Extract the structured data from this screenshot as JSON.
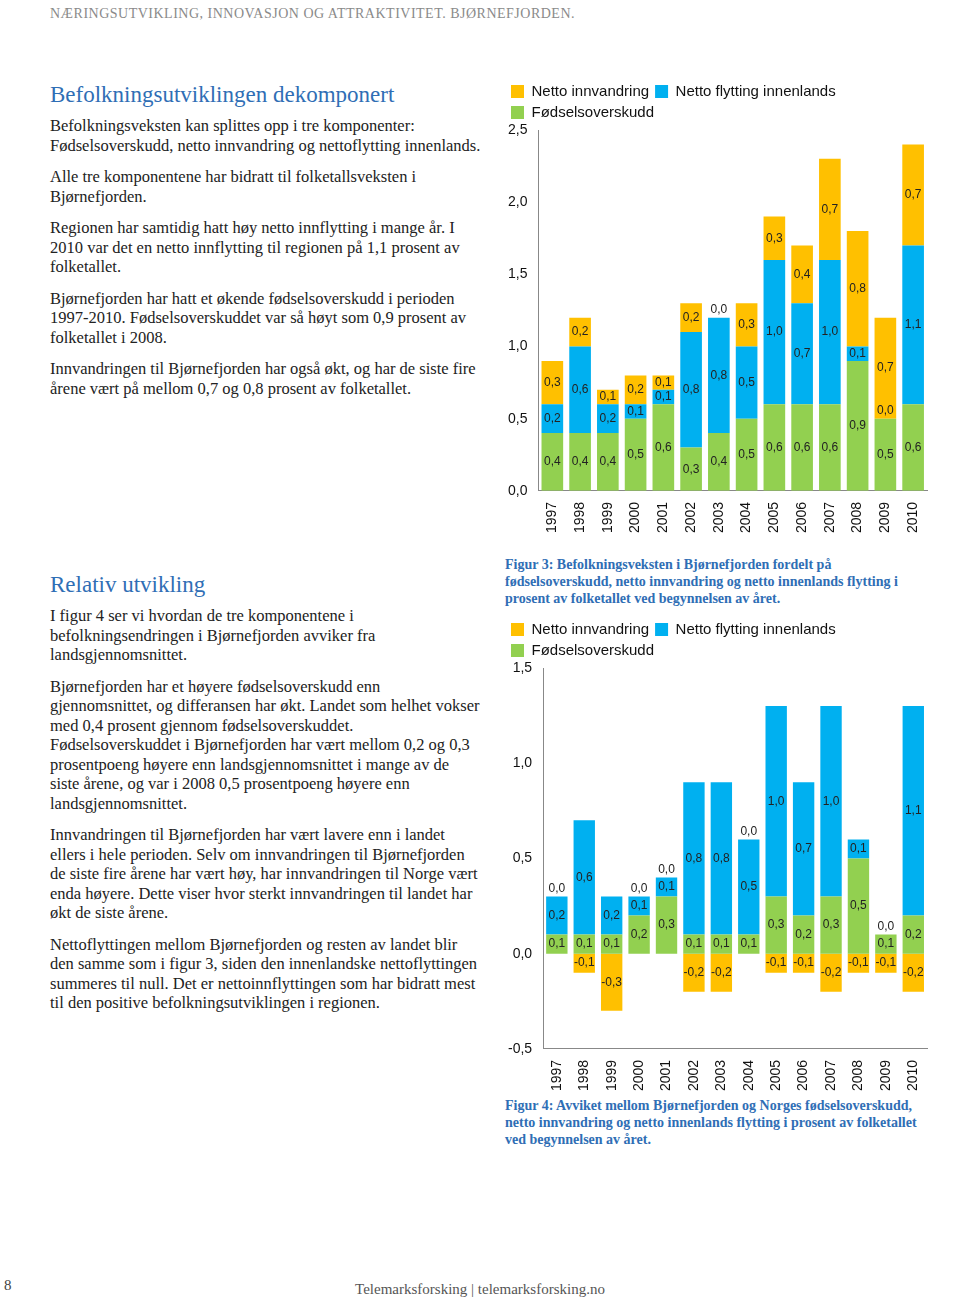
{
  "header": "NÆRINGSUTVIKLING, INNOVASJON OG ATTRAKTIVITET. BJØRNEFJORDEN.",
  "sections": [
    {
      "title": "Befolkningsutviklingen dekomponert",
      "paragraphs": [
        "Befolkningsveksten kan splittes opp i tre komponenter: Fødselsoverskudd, netto innvandring og nettoflytting innenlands.",
        "Alle tre komponentene har bidratt til folketallsveksten i Bjørnefjorden.",
        "Regionen har samtidig hatt høy netto innflytting i mange år. I 2010 var det en netto innflytting til regionen på 1,1 prosent av folketallet.",
        "Bjørnefjorden har hatt et økende fødselsoverskudd i perioden 1997-2010. Fødselsoverskuddet var så høyt som 0,9 prosent av folketallet i 2008.",
        "Innvandringen til Bjørnefjorden har også økt, og har de siste fire årene vært på mellom 0,7 og 0,8 prosent av folketallet."
      ]
    },
    {
      "title": "Relativ utvikling",
      "paragraphs": [
        "I figur 4 ser vi hvordan de tre komponentene i befolkningsendringen i Bjørnefjorden avviker fra landsgjennomsnittet.",
        "Bjørnefjorden har et høyere fødselsoverskudd enn gjennomsnittet, og differansen har økt. Landet som helhet vokser med 0,4 prosent gjennom fødselsoverskuddet. Fødselsoverskuddet i Bjørnefjorden har vært mellom 0,2 og 0,3 prosentpoeng høyere enn landsgjennomsnittet i mange av de siste årene, og var i 2008 0,5 prosentpoeng høyere enn landsgjennomsnittet.",
        "Innvandringen til Bjørnefjorden har vært lavere enn i landet ellers i hele perioden. Selv om innvandringen til Bjørnefjorden de siste fire årene har vært høy, har innvandringen til Norge vært enda høyere. Dette viser hvor sterkt innvandringen til landet har økt de siste årene.",
        "Nettoflyttingen mellom Bjørnefjorden og resten av landet blir den samme som i figur 3, siden den innenlandske nettoflyttingen summeres til null. Det er nettoinnflyttingen som har bidratt mest til den positive befolkningsutviklingen i regionen."
      ]
    }
  ],
  "footer": {
    "page": "8",
    "text": "Telemarksforsking | telemarksforsking.no"
  },
  "chart_data": [
    {
      "type": "bar",
      "stacked": true,
      "data_labels": true,
      "legend": "top-left",
      "grid": false,
      "caption": "Figur 3: Befolkningsveksten i Bjørnefjorden fordelt på fødselsoverskudd, netto innvandring og netto innenlands flytting i prosent av folketallet ved begynnelsen av året.",
      "categories": [
        "1997",
        "1998",
        "1999",
        "2000",
        "2001",
        "2002",
        "2003",
        "2004",
        "2005",
        "2006",
        "2007",
        "2008",
        "2009",
        "2010"
      ],
      "ylim": [
        0,
        2.5
      ],
      "yticks": [
        {
          "value": 0,
          "label": "0,0"
        },
        {
          "value": 0.5,
          "label": "0,5"
        },
        {
          "value": 1,
          "label": "1,0"
        },
        {
          "value": 1.5,
          "label": "1,5"
        },
        {
          "value": 2,
          "label": "2,0"
        },
        {
          "value": 2.5,
          "label": "2,5"
        }
      ],
      "series": [
        {
          "name": "Fødselsoverskudd",
          "color": "#92D050",
          "values": [
            0.4,
            0.4,
            0.4,
            0.5,
            0.6,
            0.3,
            0.4,
            0.5,
            0.6,
            0.6,
            0.6,
            0.9,
            0.5,
            0.6
          ],
          "value_labels": [
            "0,4",
            "0,4",
            "0,4",
            "0,5",
            "0,6",
            "0,3",
            "0,4",
            "0,5",
            "0,6",
            "0,6",
            "0,6",
            "0,9",
            "0,5",
            "0,6"
          ]
        },
        {
          "name": "Netto flytting innenlands",
          "color": "#00B0F0",
          "values": [
            0.2,
            0.6,
            0.2,
            0.1,
            0.1,
            0.8,
            0.8,
            0.5,
            1.0,
            0.7,
            1.0,
            0.1,
            0.0,
            1.1
          ],
          "value_labels": [
            "0,2",
            "0,6",
            "0,2",
            "0,1",
            "0,1",
            "0,8",
            "0,8",
            "0,5",
            "1,0",
            "0,7",
            "1,0",
            "0,1",
            "0,0",
            "1,1"
          ]
        },
        {
          "name": "Netto innvandring",
          "color": "#FFC000",
          "values": [
            0.3,
            0.2,
            0.1,
            0.2,
            0.1,
            0.2,
            0.0,
            0.3,
            0.3,
            0.4,
            0.7,
            0.8,
            0.7,
            0.7
          ],
          "value_labels": [
            "0,3",
            "0,2",
            "0,1",
            "0,2",
            "0,1",
            "0,2",
            "0,0",
            "0,3",
            "0,3",
            "0,4",
            "0,7",
            "0,8",
            "0,7",
            "0,7"
          ]
        }
      ]
    },
    {
      "type": "bar",
      "stacked": true,
      "data_labels": true,
      "legend": "top-left",
      "grid": false,
      "caption": "Figur 4: Avviket mellom Bjørnefjorden og Norges fødselsoverskudd, netto innvandring og netto innenlands flytting i prosent av folketallet ved begynnelsen av året.",
      "categories": [
        "1997",
        "1998",
        "1999",
        "2000",
        "2001",
        "2002",
        "2003",
        "2004",
        "2005",
        "2006",
        "2007",
        "2008",
        "2009",
        "2010"
      ],
      "ylim": [
        -0.5,
        1.5
      ],
      "yticks": [
        {
          "value": -0.5,
          "label": "-0,5"
        },
        {
          "value": 0,
          "label": "0,0"
        },
        {
          "value": 0.5,
          "label": "0,5"
        },
        {
          "value": 1,
          "label": "1,0"
        },
        {
          "value": 1.5,
          "label": "1,5"
        }
      ],
      "series": [
        {
          "name": "Fødselsoverskudd",
          "color": "#92D050",
          "values": [
            0.1,
            0.1,
            0.1,
            0.2,
            0.3,
            0.1,
            0.1,
            0.1,
            0.3,
            0.2,
            0.3,
            0.5,
            0.1,
            0.2
          ],
          "value_labels": [
            "0,1",
            "0,1",
            "0,1",
            "0,2",
            "0,3",
            "0,1",
            "0,1",
            "0,1",
            "0,3",
            "0,2",
            "0,3",
            "0,5",
            "0,1",
            "0,2"
          ]
        },
        {
          "name": "Netto flytting innenlands",
          "color": "#00B0F0",
          "values": [
            0.2,
            0.6,
            0.2,
            0.1,
            0.1,
            0.8,
            0.8,
            0.5,
            1.0,
            0.7,
            1.0,
            0.1,
            0.0,
            1.1
          ],
          "value_labels": [
            "0,2",
            "0,6",
            "0,2",
            "0,1",
            "0,1",
            "0,8",
            "0,8",
            "0,5",
            "1,0",
            "0,7",
            "1,0",
            "0,1",
            "0,0",
            "1,1"
          ]
        },
        {
          "name": "Netto innvandring",
          "color": "#FFC000",
          "values": [
            0.0,
            -0.1,
            -0.3,
            0.0,
            0.0,
            -0.2,
            -0.2,
            0.0,
            -0.1,
            -0.1,
            -0.2,
            -0.1,
            -0.1,
            -0.2
          ],
          "value_labels": [
            "0,0",
            "-0,1",
            "-0,3",
            "0,0",
            "0,0",
            "-0,2",
            "-0,2",
            "0,0",
            "-0,1",
            "-0,1",
            "-0,2",
            "-0,1",
            "-0,1",
            "-0,2"
          ]
        }
      ]
    }
  ]
}
